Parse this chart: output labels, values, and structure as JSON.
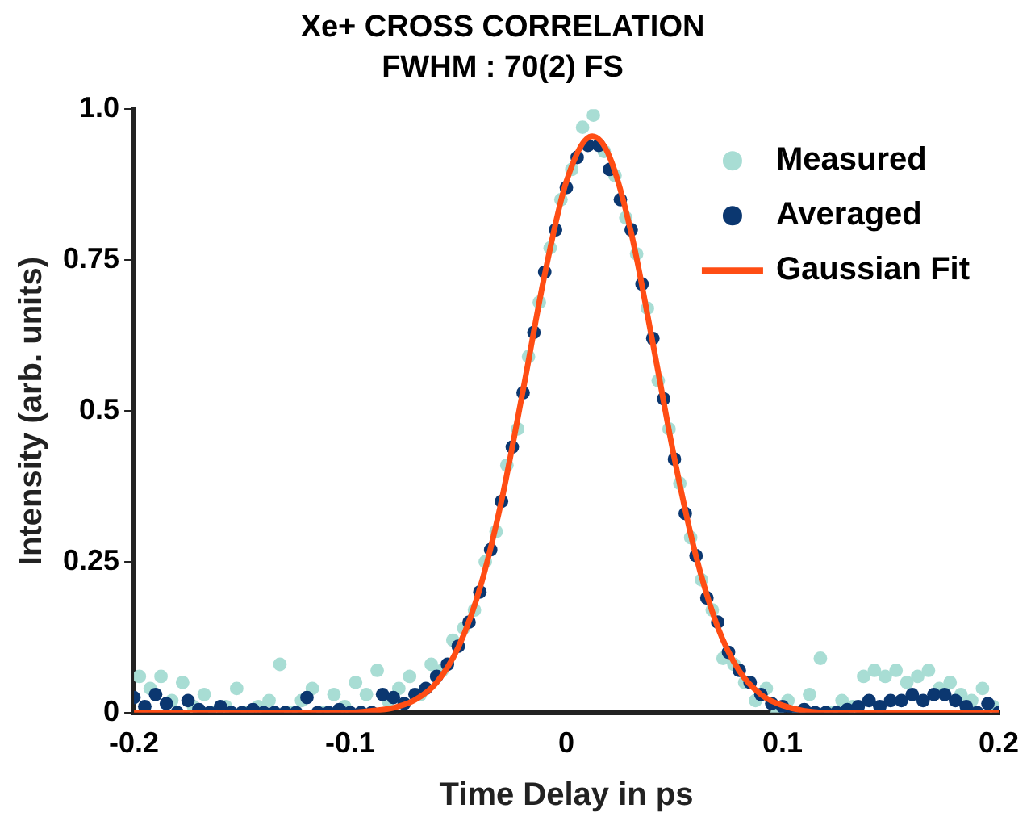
{
  "chart_data": {
    "type": "scatter",
    "title": "Xe+ CROSS CORRELATION",
    "subtitle": "FWHM : 70(2) FS",
    "xlabel": "Time Delay in ps",
    "ylabel": "Intensity (arb. units)",
    "xlim": [
      -0.2,
      0.2
    ],
    "xticks": [
      -0.2,
      -0.1,
      0,
      0.1,
      0.2
    ],
    "ylim": [
      0,
      1
    ],
    "yticks": [
      0,
      0.25,
      0.5,
      0.75,
      {
        "value": 1,
        "label": "1.0"
      }
    ],
    "grid": false,
    "legend": "top right",
    "marker": "circle",
    "series": [
      {
        "name": "Measured",
        "color": "#a8ddd4",
        "x": [
          -0.1975,
          -0.1925,
          -0.1875,
          -0.1825,
          -0.1775,
          -0.1725,
          -0.1675,
          -0.1625,
          -0.1575,
          -0.1525,
          -0.1475,
          -0.1425,
          -0.1375,
          -0.1325,
          -0.1275,
          -0.1225,
          -0.1175,
          -0.1125,
          -0.1075,
          -0.1025,
          -0.0975,
          -0.0925,
          -0.0875,
          -0.0825,
          -0.0775,
          -0.0725,
          -0.0675,
          -0.0625,
          -0.0575,
          -0.0525,
          -0.0475,
          -0.0425,
          -0.0375,
          -0.0325,
          -0.0275,
          -0.0225,
          -0.0175,
          -0.0125,
          -0.0075,
          -0.0025,
          0.0025,
          0.0075,
          0.0125,
          0.0175,
          0.0225,
          0.0275,
          0.0325,
          0.0375,
          0.0425,
          0.0475,
          0.0525,
          0.0575,
          0.0625,
          0.0675,
          0.0725,
          0.0775,
          0.0825,
          0.0875,
          0.0925,
          0.0975,
          0.1025,
          0.1075,
          0.1125,
          0.1175,
          0.1225,
          0.1275,
          0.1325,
          0.1375,
          0.1425,
          0.1475,
          0.1525,
          0.1575,
          0.1625,
          0.1675,
          0.1725,
          0.1775,
          0.1825,
          0.1875,
          0.1925,
          0.1975
        ],
        "values": [
          0.06,
          0.04,
          0.06,
          0.02,
          0.05,
          0.01,
          0.03,
          0.0,
          0.01,
          0.04,
          0.0,
          0.01,
          0.02,
          0.08,
          0.0,
          0.02,
          0.04,
          0.0,
          0.03,
          0.01,
          0.05,
          0.03,
          0.07,
          0.02,
          0.04,
          0.06,
          0.03,
          0.08,
          0.07,
          0.12,
          0.14,
          0.17,
          0.25,
          0.3,
          0.41,
          0.47,
          0.59,
          0.68,
          0.77,
          0.85,
          0.9,
          0.97,
          0.99,
          0.93,
          0.89,
          0.82,
          0.76,
          0.67,
          0.55,
          0.47,
          0.38,
          0.29,
          0.22,
          0.17,
          0.09,
          0.08,
          0.05,
          0.02,
          0.04,
          0.0,
          0.02,
          0.0,
          0.03,
          0.09,
          0.0,
          0.02,
          0.01,
          0.06,
          0.07,
          0.06,
          0.07,
          0.05,
          0.06,
          0.07,
          0.04,
          0.05,
          0.03,
          0.02,
          0.04,
          0.01
        ]
      },
      {
        "name": "Averaged",
        "color": "#0b3770",
        "x": [
          -0.2,
          -0.195,
          -0.19,
          -0.185,
          -0.18,
          -0.175,
          -0.17,
          -0.165,
          -0.16,
          -0.155,
          -0.15,
          -0.145,
          -0.14,
          -0.135,
          -0.13,
          -0.125,
          -0.12,
          -0.115,
          -0.11,
          -0.105,
          -0.1,
          -0.095,
          -0.09,
          -0.085,
          -0.08,
          -0.075,
          -0.07,
          -0.065,
          -0.06,
          -0.055,
          -0.05,
          -0.045,
          -0.04,
          -0.035,
          -0.03,
          -0.025,
          -0.02,
          -0.015,
          -0.01,
          -0.005,
          0,
          0.005,
          0.01,
          0.015,
          0.02,
          0.025,
          0.03,
          0.035,
          0.04,
          0.045,
          0.05,
          0.055,
          0.06,
          0.065,
          0.07,
          0.075,
          0.08,
          0.085,
          0.09,
          0.095,
          0.1,
          0.105,
          0.11,
          0.115,
          0.12,
          0.125,
          0.13,
          0.135,
          0.14,
          0.145,
          0.15,
          0.155,
          0.16,
          0.165,
          0.17,
          0.175,
          0.18,
          0.185,
          0.19,
          0.195,
          0.2
        ],
        "values": [
          0.025,
          0.01,
          0.03,
          0.015,
          0.0,
          0.02,
          0.005,
          0.0,
          0.01,
          0.0,
          0.0,
          0.005,
          0.0,
          0.0,
          0.0,
          0.0,
          0.025,
          0.0,
          0.0,
          0.005,
          0.0,
          0.0,
          0.0,
          0.03,
          0.025,
          0.015,
          0.03,
          0.04,
          0.06,
          0.08,
          0.11,
          0.15,
          0.2,
          0.27,
          0.35,
          0.44,
          0.53,
          0.63,
          0.73,
          0.8,
          0.87,
          0.92,
          0.94,
          0.94,
          0.9,
          0.85,
          0.8,
          0.71,
          0.62,
          0.52,
          0.42,
          0.33,
          0.26,
          0.19,
          0.15,
          0.1,
          0.07,
          0.05,
          0.03,
          0.015,
          0.01,
          0.0,
          0.005,
          0.0,
          0.0,
          0.0,
          0.005,
          0.01,
          0.02,
          0.01,
          0.02,
          0.02,
          0.03,
          0.02,
          0.03,
          0.03,
          0.02,
          0.01,
          0.0,
          0.015,
          0.0
        ]
      },
      {
        "name": "Gaussian Fit",
        "type": "line",
        "color": "#ff4d14",
        "marker": "none",
        "line_style": "solid",
        "x": [
          -0.2,
          -0.1,
          -0.09,
          -0.08,
          -0.07,
          -0.06,
          -0.05,
          -0.04,
          -0.03,
          -0.02,
          -0.01,
          0,
          0.012,
          0.02,
          0.03,
          0.04,
          0.05,
          0.06,
          0.07,
          0.08,
          0.09,
          0.1,
          0.12,
          0.2
        ],
        "values": [
          0,
          0,
          0.003,
          0.008,
          0.021,
          0.05,
          0.108,
          0.206,
          0.351,
          0.535,
          0.726,
          0.88,
          0.955,
          0.921,
          0.795,
          0.612,
          0.421,
          0.259,
          0.142,
          0.069,
          0.03,
          0.012,
          0,
          0
        ]
      }
    ]
  }
}
